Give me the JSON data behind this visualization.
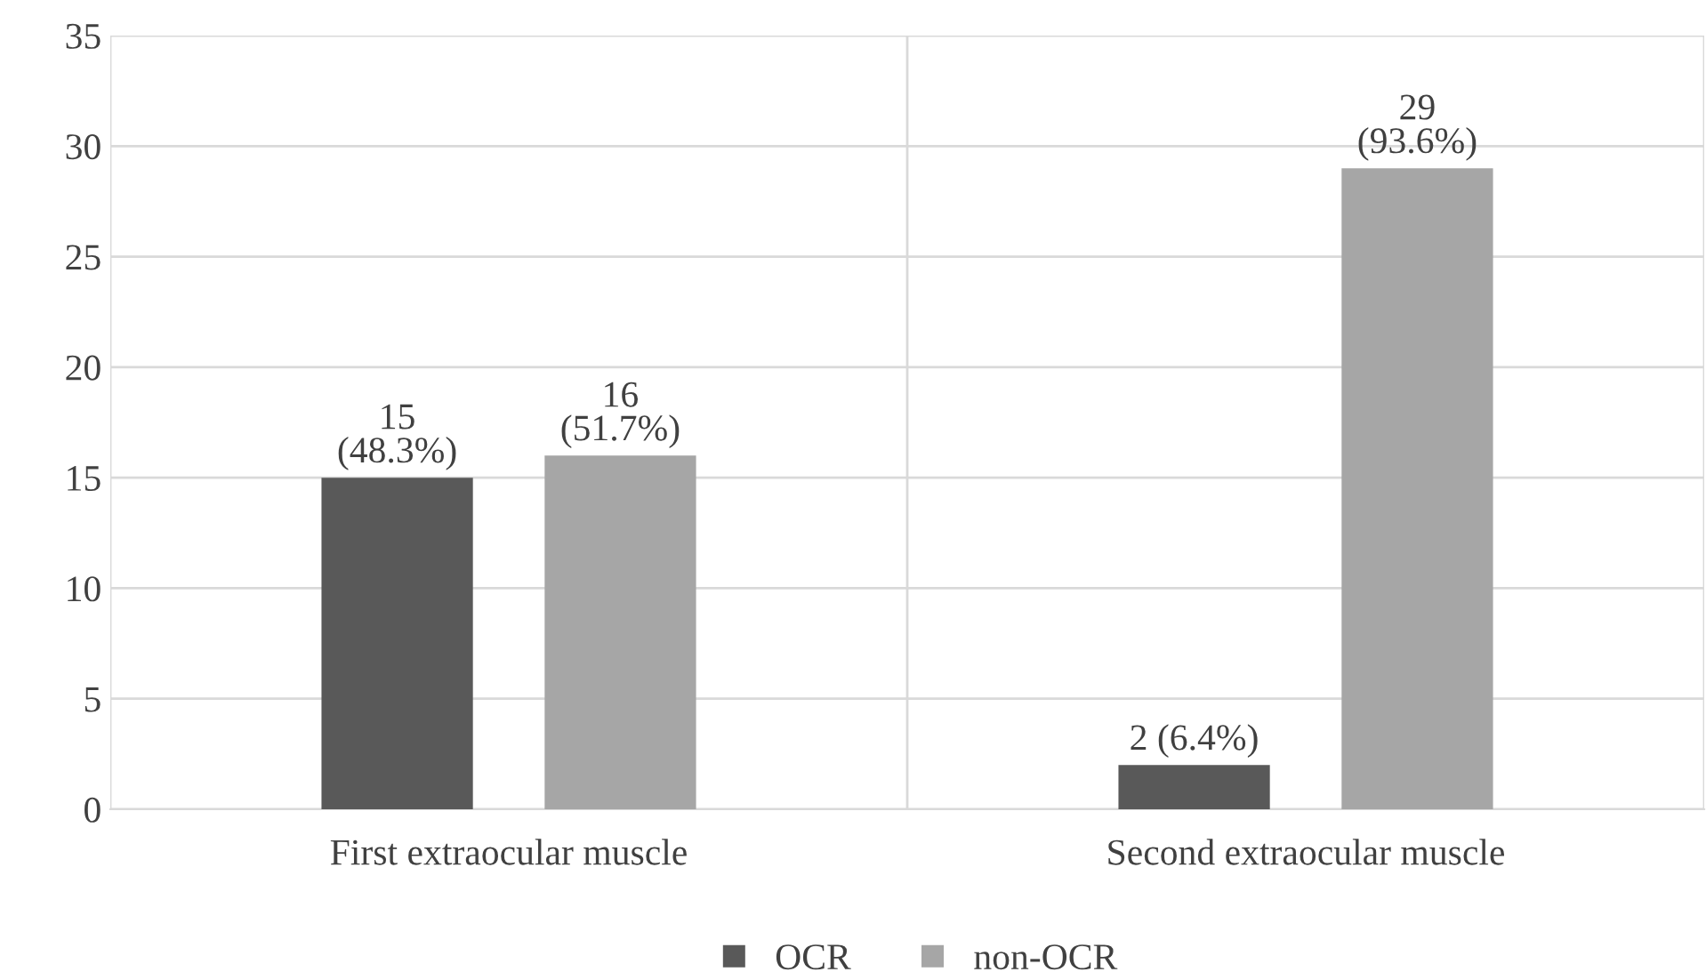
{
  "chart_data": {
    "type": "bar",
    "categories": [
      "First extraocular muscle",
      "Second extraocular muscle"
    ],
    "series": [
      {
        "name": "OCR",
        "color": "#595959",
        "values": [
          15,
          2
        ],
        "value_labels": [
          "15\n(48.3%)",
          "2 (6.4%)"
        ]
      },
      {
        "name": "non-OCR",
        "color": "#a6a6a6",
        "values": [
          16,
          29
        ],
        "value_labels": [
          "16\n(51.7%)",
          "29\n(93.6%)"
        ]
      }
    ],
    "ylim": [
      0,
      35
    ],
    "yticks": [
      0,
      5,
      10,
      15,
      20,
      25,
      30,
      35
    ],
    "grid": true,
    "legend": "bottom"
  }
}
